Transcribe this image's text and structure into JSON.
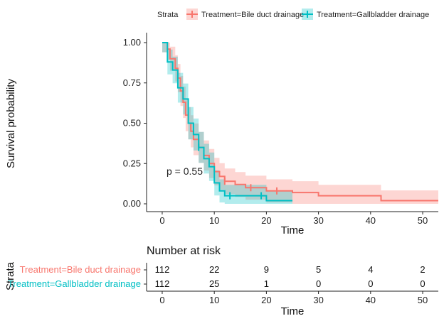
{
  "chart_data": {
    "type": "line",
    "subtype": "kaplan-meier",
    "legend_title": "Strata",
    "legend_position": "top",
    "xlabel": "Time",
    "ylabel": "Survival probability",
    "xlim": [
      -3,
      53
    ],
    "ylim": [
      0,
      1
    ],
    "x_ticks": [
      "0",
      "10",
      "20",
      "30",
      "40",
      "50"
    ],
    "y_ticks": [
      "0.00",
      "0.25",
      "0.50",
      "0.75",
      "1.00"
    ],
    "pvalue_label": "p = 0.55",
    "grid": false,
    "series": [
      {
        "name": "Treatment=Bile duct drainage",
        "color": "#F8766D",
        "steps": [
          [
            0,
            1.0
          ],
          [
            1,
            0.96
          ],
          [
            1.5,
            0.9
          ],
          [
            2.5,
            0.84
          ],
          [
            3,
            0.78
          ],
          [
            3.5,
            0.7
          ],
          [
            4,
            0.63
          ],
          [
            4.5,
            0.55
          ],
          [
            5,
            0.5
          ],
          [
            5.5,
            0.45
          ],
          [
            6,
            0.4
          ],
          [
            7,
            0.35
          ],
          [
            8,
            0.3
          ],
          [
            9,
            0.25
          ],
          [
            10,
            0.2
          ],
          [
            11,
            0.17
          ],
          [
            12,
            0.14
          ],
          [
            14,
            0.12
          ],
          [
            16,
            0.1
          ],
          [
            20,
            0.08
          ],
          [
            25,
            0.07
          ],
          [
            30,
            0.05
          ],
          [
            42,
            0.02
          ],
          [
            53,
            0.02
          ]
        ],
        "censor_x": [
          12,
          17,
          22
        ]
      },
      {
        "name": "Treatment=Gallbladder drainage",
        "color": "#00BFC4",
        "steps": [
          [
            0,
            1.0
          ],
          [
            1,
            0.88
          ],
          [
            2,
            0.83
          ],
          [
            3,
            0.72
          ],
          [
            4,
            0.65
          ],
          [
            5,
            0.5
          ],
          [
            6,
            0.43
          ],
          [
            7,
            0.35
          ],
          [
            8,
            0.28
          ],
          [
            9,
            0.23
          ],
          [
            10,
            0.13
          ],
          [
            11,
            0.08
          ],
          [
            12,
            0.05
          ],
          [
            19,
            0.05
          ],
          [
            20,
            0.02
          ],
          [
            25,
            0.02
          ]
        ],
        "censor_x": [
          7,
          13,
          19
        ]
      }
    ],
    "risk_table": {
      "title": "Number at risk",
      "strata_label": "Strata",
      "xlabel": "Time",
      "times": [
        0,
        10,
        20,
        30,
        40,
        50
      ],
      "x_ticks": [
        "0",
        "10",
        "20",
        "30",
        "40",
        "50"
      ],
      "rows": [
        {
          "name": "Treatment=Bile duct drainage",
          "color": "#F8766D",
          "counts": [
            "112",
            "22",
            "9",
            "5",
            "4",
            "2"
          ]
        },
        {
          "name": "Treatment=Gallbladder drainage",
          "color": "#00BFC4",
          "counts": [
            "112",
            "25",
            "1",
            "0",
            "0",
            "0"
          ]
        }
      ]
    }
  }
}
